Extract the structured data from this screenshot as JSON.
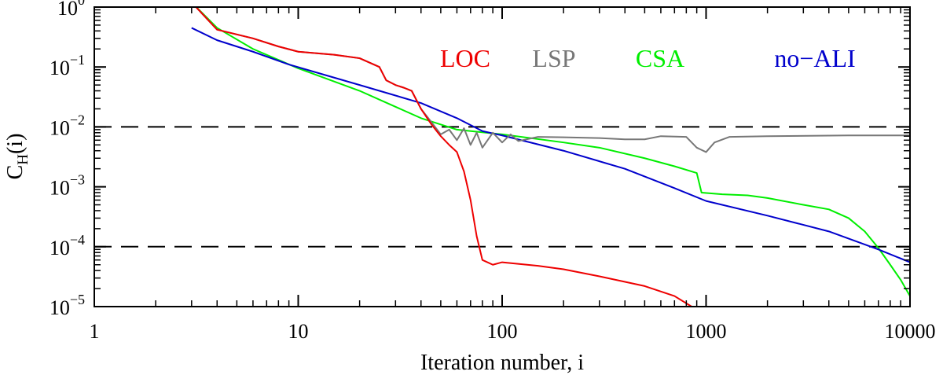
{
  "chart_data": {
    "type": "line",
    "xscale": "log",
    "yscale": "log",
    "xlim": [
      1,
      10000
    ],
    "ylim": [
      1e-05,
      1
    ],
    "xlabel": "Iteration number, i",
    "ylabel_main": "C",
    "ylabel_sub": "H",
    "ylabel_tail": "(i)",
    "x_ticks": [
      {
        "value": 1,
        "label": "1"
      },
      {
        "value": 10,
        "label": "10"
      },
      {
        "value": 100,
        "label": "100"
      },
      {
        "value": 1000,
        "label": "1000"
      },
      {
        "value": 10000,
        "label": "10000"
      }
    ],
    "y_ticks": [
      {
        "value": 1,
        "base": "10",
        "exp": "0"
      },
      {
        "value": 0.1,
        "base": "10",
        "exp": "−1"
      },
      {
        "value": 0.01,
        "base": "10",
        "exp": "−2"
      },
      {
        "value": 0.001,
        "base": "10",
        "exp": "−3"
      },
      {
        "value": 0.0001,
        "base": "10",
        "exp": "−4"
      },
      {
        "value": 1e-05,
        "base": "10",
        "exp": "−5"
      }
    ],
    "reference_lines": [
      0.01,
      0.0001
    ],
    "series": [
      {
        "name": "CSA",
        "color": "#00ee00",
        "points": [
          [
            3,
            1.2
          ],
          [
            4,
            0.45
          ],
          [
            6,
            0.2
          ],
          [
            10,
            0.095
          ],
          [
            20,
            0.04
          ],
          [
            40,
            0.014
          ],
          [
            60,
            0.009
          ],
          [
            100,
            0.0075
          ],
          [
            200,
            0.0055
          ],
          [
            300,
            0.0045
          ],
          [
            500,
            0.003
          ],
          [
            700,
            0.0022
          ],
          [
            900,
            0.0017
          ],
          [
            950,
            0.0008
          ],
          [
            1200,
            0.00075
          ],
          [
            1600,
            0.00072
          ],
          [
            2000,
            0.00065
          ],
          [
            3000,
            0.0005
          ],
          [
            4000,
            0.00042
          ],
          [
            5000,
            0.0003
          ],
          [
            6000,
            0.00018
          ],
          [
            7000,
            9.5e-05
          ],
          [
            8000,
            5e-05
          ],
          [
            9000,
            2.8e-05
          ],
          [
            10000,
            1.5e-05
          ]
        ]
      },
      {
        "name": "no−ALI",
        "color": "#0000cc",
        "points": [
          [
            3,
            0.45
          ],
          [
            4,
            0.28
          ],
          [
            6,
            0.18
          ],
          [
            9,
            0.11
          ],
          [
            20,
            0.05
          ],
          [
            40,
            0.025
          ],
          [
            60,
            0.014
          ],
          [
            80,
            0.0085
          ],
          [
            100,
            0.0072
          ],
          [
            200,
            0.004
          ],
          [
            400,
            0.002
          ],
          [
            700,
            0.00095
          ],
          [
            1000,
            0.00058
          ],
          [
            2000,
            0.00033
          ],
          [
            4000,
            0.00018
          ],
          [
            7000,
            9e-05
          ],
          [
            10000,
            5.5e-05
          ]
        ]
      },
      {
        "name": "LSP",
        "color": "#777777",
        "points": [
          [
            3,
            1.2
          ],
          [
            4,
            0.42
          ],
          [
            6,
            0.3
          ],
          [
            8,
            0.22
          ],
          [
            10,
            0.18
          ],
          [
            15,
            0.16
          ],
          [
            20,
            0.14
          ],
          [
            25,
            0.1
          ],
          [
            27,
            0.06
          ],
          [
            30,
            0.05
          ],
          [
            33,
            0.045
          ],
          [
            36,
            0.04
          ],
          [
            40,
            0.02
          ],
          [
            45,
            0.012
          ],
          [
            50,
            0.0075
          ],
          [
            55,
            0.009
          ],
          [
            60,
            0.006
          ],
          [
            65,
            0.0095
          ],
          [
            70,
            0.005
          ],
          [
            75,
            0.008
          ],
          [
            80,
            0.0045
          ],
          [
            90,
            0.008
          ],
          [
            100,
            0.0055
          ],
          [
            110,
            0.0075
          ],
          [
            120,
            0.0058
          ],
          [
            150,
            0.0068
          ],
          [
            200,
            0.0067
          ],
          [
            300,
            0.0065
          ],
          [
            400,
            0.0062
          ],
          [
            500,
            0.0062
          ],
          [
            600,
            0.007
          ],
          [
            800,
            0.0068
          ],
          [
            900,
            0.0045
          ],
          [
            1000,
            0.0038
          ],
          [
            1100,
            0.0055
          ],
          [
            1300,
            0.0068
          ],
          [
            2000,
            0.007
          ],
          [
            5000,
            0.0072
          ],
          [
            10000,
            0.0072
          ]
        ]
      },
      {
        "name": "LOC",
        "color": "#ee0000",
        "points": [
          [
            3,
            1.2
          ],
          [
            4,
            0.42
          ],
          [
            6,
            0.3
          ],
          [
            8,
            0.22
          ],
          [
            10,
            0.18
          ],
          [
            15,
            0.16
          ],
          [
            20,
            0.14
          ],
          [
            25,
            0.1
          ],
          [
            27,
            0.06
          ],
          [
            30,
            0.05
          ],
          [
            33,
            0.045
          ],
          [
            36,
            0.04
          ],
          [
            40,
            0.02
          ],
          [
            45,
            0.011
          ],
          [
            50,
            0.007
          ],
          [
            55,
            0.005
          ],
          [
            60,
            0.0038
          ],
          [
            65,
            0.0018
          ],
          [
            70,
            0.0006
          ],
          [
            75,
            0.00015
          ],
          [
            80,
            6e-05
          ],
          [
            90,
            5e-05
          ],
          [
            100,
            5.5e-05
          ],
          [
            150,
            4.8e-05
          ],
          [
            200,
            4.2e-05
          ],
          [
            300,
            3.2e-05
          ],
          [
            500,
            2.2e-05
          ],
          [
            700,
            1.5e-05
          ],
          [
            850,
            1e-05
          ]
        ]
      }
    ],
    "legend": {
      "placement": "top-right",
      "entries": [
        {
          "label": "LOC",
          "color": "#ee0000"
        },
        {
          "label": "LSP",
          "color": "#777777"
        },
        {
          "label": "CSA",
          "color": "#00ee00"
        },
        {
          "label": "no−ALI",
          "color": "#0000cc"
        }
      ]
    }
  }
}
